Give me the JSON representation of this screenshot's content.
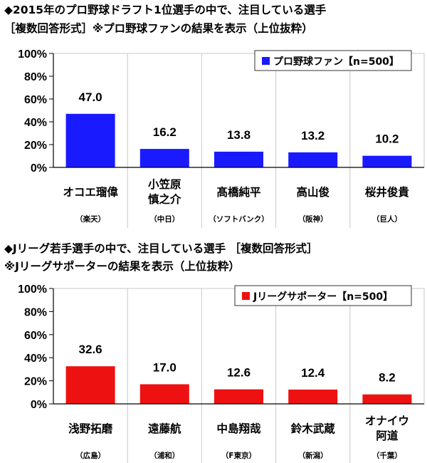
{
  "chart_data": [
    {
      "type": "bar",
      "title_lines": [
        "◆2015年のプロ野球ドラフト1位選手の中で、注目している選手",
        "［複数回答形式］※プロ野球ファンの結果を表示（上位抜粋）"
      ],
      "categories": [
        "オコエ瑠偉",
        "小笠原\n慎之介",
        "髙橋純平",
        "高山俊",
        "桜井俊貴"
      ],
      "sublabels": [
        "（楽天）",
        "（中日）",
        "（ソフトバンク）",
        "（阪神）",
        "（巨人）"
      ],
      "series": [
        {
          "name": "プロ野球ファン【n=500】",
          "values": [
            47.0,
            16.2,
            13.8,
            13.2,
            10.2
          ],
          "color": "#1a1aff"
        }
      ],
      "value_labels": [
        "47.0",
        "16.2",
        "13.8",
        "13.2",
        "10.2"
      ],
      "ylim": [
        0,
        100
      ],
      "yticks": [
        0,
        20,
        40,
        60,
        80,
        100
      ],
      "ytick_labels": [
        "0%",
        "20%",
        "40%",
        "60%",
        "80%",
        "100%"
      ],
      "grid": "vertical category separators",
      "legend_position": "top-right"
    },
    {
      "type": "bar",
      "title_lines": [
        "◆Jリーグ若手選手の中で、注目している選手 ［複数回答形式］",
        "※Jリーグサポーターの結果を表示（上位抜粋）"
      ],
      "categories": [
        "浅野拓磨",
        "遠藤航",
        "中島翔哉",
        "鈴木武蔵",
        "オナイウ\n阿道"
      ],
      "sublabels": [
        "（広島）",
        "（浦和）",
        "（F東京）",
        "（新潟）",
        "（千葉）"
      ],
      "series": [
        {
          "name": "Jリーグサポーター【n=500】",
          "values": [
            32.6,
            17.0,
            12.6,
            12.4,
            8.2
          ],
          "color": "#ee1111"
        }
      ],
      "value_labels": [
        "32.6",
        "17.0",
        "12.6",
        "12.4",
        "8.2"
      ],
      "ylim": [
        0,
        100
      ],
      "yticks": [
        0,
        20,
        40,
        60,
        80,
        100
      ],
      "ytick_labels": [
        "0%",
        "20%",
        "40%",
        "60%",
        "80%",
        "100%"
      ],
      "grid": "vertical category separators",
      "legend_position": "top-right"
    }
  ]
}
